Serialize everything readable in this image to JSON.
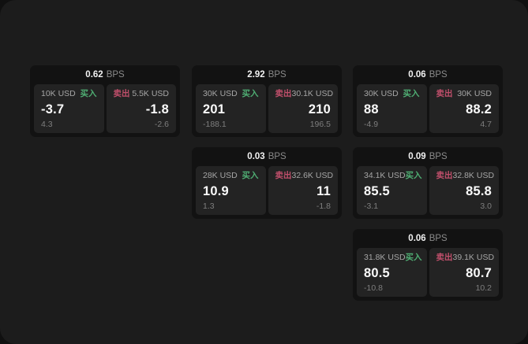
{
  "labels": {
    "bps_unit": "BPS",
    "buy": "买入",
    "sell": "卖出"
  },
  "colors": {
    "page_background": "#1c1c1c",
    "card_background": "#121212",
    "panel_background": "#232323",
    "buy_green": "#4fae73",
    "sell_red": "#c04f6b"
  },
  "cards": [
    {
      "grid": {
        "row": 1,
        "col": 1
      },
      "bps_value": "0.62",
      "buy": {
        "amount": "10K USD",
        "price": "-3.7",
        "sub_value": "4.3"
      },
      "sell": {
        "amount": "5.5K USD",
        "price": "-1.8",
        "sub_value": "-2.6"
      }
    },
    {
      "grid": {
        "row": 1,
        "col": 2
      },
      "bps_value": "2.92",
      "buy": {
        "amount": "30K USD",
        "price": "201",
        "sub_value": "-188.1"
      },
      "sell": {
        "amount": "30.1K USD",
        "price": "210",
        "sub_value": "196.5"
      }
    },
    {
      "grid": {
        "row": 1,
        "col": 3
      },
      "bps_value": "0.06",
      "buy": {
        "amount": "30K USD",
        "price": "88",
        "sub_value": "-4.9"
      },
      "sell": {
        "amount": "30K USD",
        "price": "88.2",
        "sub_value": "4.7"
      }
    },
    {
      "grid": {
        "row": 2,
        "col": 2
      },
      "bps_value": "0.03",
      "buy": {
        "amount": "28K USD",
        "price": "10.9",
        "sub_value": "1.3"
      },
      "sell": {
        "amount": "32.6K USD",
        "price": "11",
        "sub_value": "-1.8"
      }
    },
    {
      "grid": {
        "row": 2,
        "col": 3
      },
      "bps_value": "0.09",
      "buy": {
        "amount": "34.1K USD",
        "price": "85.5",
        "sub_value": "-3.1"
      },
      "sell": {
        "amount": "32.8K USD",
        "price": "85.8",
        "sub_value": "3.0"
      }
    },
    {
      "grid": {
        "row": 3,
        "col": 3
      },
      "bps_value": "0.06",
      "buy": {
        "amount": "31.8K USD",
        "price": "80.5",
        "sub_value": "-10.8"
      },
      "sell": {
        "amount": "39.1K USD",
        "price": "80.7",
        "sub_value": "10.2"
      }
    }
  ]
}
